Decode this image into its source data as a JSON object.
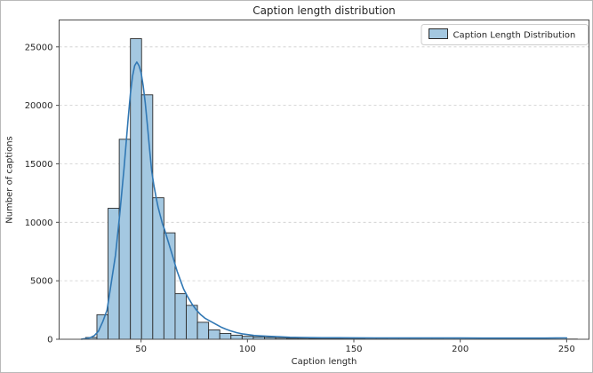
{
  "chart_data": {
    "type": "bar",
    "subtype": "histogram_with_kde",
    "title": "Caption length distribution",
    "xlabel": "Caption length",
    "ylabel": "Number of captions",
    "legend": {
      "label": "Caption Length Distribution",
      "position": "upper right"
    },
    "xticks": [
      50,
      100,
      150,
      200,
      250
    ],
    "yticks": [
      0,
      5000,
      10000,
      15000,
      20000,
      25000
    ],
    "xlim": [
      11.5,
      260.5
    ],
    "ylim": [
      0,
      27300
    ],
    "grid": {
      "axis": "y",
      "style": "dashed",
      "color": "#cccccc"
    },
    "colors": {
      "bar_fill": "#a4c8e1",
      "bar_edge": "#2b2b2b",
      "kde_line": "#3178b4",
      "spine": "#4d4d4d",
      "text": "#262626",
      "legend_border": "#cccccc",
      "background": "#ffffff"
    },
    "histogram": {
      "bin_start": 24,
      "bin_width": 5.25,
      "counts": [
        150,
        2100,
        11200,
        17100,
        25700,
        20900,
        12100,
        9100,
        3900,
        2900,
        1450,
        800,
        500,
        350,
        250,
        200,
        150,
        100,
        80,
        80,
        60,
        50,
        50,
        40,
        40,
        30,
        30,
        25,
        25,
        20,
        20,
        20,
        15,
        15,
        15,
        15,
        10,
        10,
        10,
        10,
        10,
        10,
        10,
        20
      ]
    },
    "kde_curve": {
      "points": [
        [
          22,
          10
        ],
        [
          24,
          60
        ],
        [
          26,
          130
        ],
        [
          28,
          300
        ],
        [
          30,
          700
        ],
        [
          32,
          1500
        ],
        [
          34,
          2500
        ],
        [
          36,
          4800
        ],
        [
          38,
          7200
        ],
        [
          40,
          10700
        ],
        [
          42,
          14600
        ],
        [
          44,
          19000
        ],
        [
          45,
          21000
        ],
        [
          46,
          22500
        ],
        [
          47,
          23400
        ],
        [
          48,
          23700
        ],
        [
          49,
          23400
        ],
        [
          50,
          22800
        ],
        [
          51,
          21700
        ],
        [
          52,
          20200
        ],
        [
          53,
          18300
        ],
        [
          54,
          16300
        ],
        [
          55,
          14400
        ],
        [
          56,
          13200
        ],
        [
          57,
          12200
        ],
        [
          58,
          11300
        ],
        [
          59,
          10600
        ],
        [
          60,
          9900
        ],
        [
          61,
          9400
        ],
        [
          62,
          8800
        ],
        [
          63,
          8200
        ],
        [
          64,
          7600
        ],
        [
          65,
          7000
        ],
        [
          66,
          6400
        ],
        [
          67,
          5800
        ],
        [
          68,
          5300
        ],
        [
          69,
          4800
        ],
        [
          70,
          4300
        ],
        [
          72,
          3600
        ],
        [
          74,
          3000
        ],
        [
          76,
          2500
        ],
        [
          78,
          2100
        ],
        [
          80,
          1800
        ],
        [
          82,
          1600
        ],
        [
          84,
          1400
        ],
        [
          86,
          1200
        ],
        [
          88,
          1000
        ],
        [
          90,
          850
        ],
        [
          92,
          720
        ],
        [
          95,
          560
        ],
        [
          98,
          450
        ],
        [
          100,
          400
        ],
        [
          103,
          330
        ],
        [
          106,
          290
        ],
        [
          110,
          250
        ],
        [
          115,
          210
        ],
        [
          120,
          170
        ],
        [
          125,
          150
        ],
        [
          130,
          140
        ],
        [
          135,
          130
        ],
        [
          140,
          130
        ],
        [
          150,
          120
        ],
        [
          160,
          115
        ],
        [
          170,
          110
        ],
        [
          180,
          110
        ],
        [
          190,
          105
        ],
        [
          200,
          105
        ],
        [
          210,
          100
        ],
        [
          220,
          100
        ],
        [
          230,
          95
        ],
        [
          240,
          100
        ],
        [
          245,
          110
        ],
        [
          250,
          115
        ]
      ]
    }
  }
}
